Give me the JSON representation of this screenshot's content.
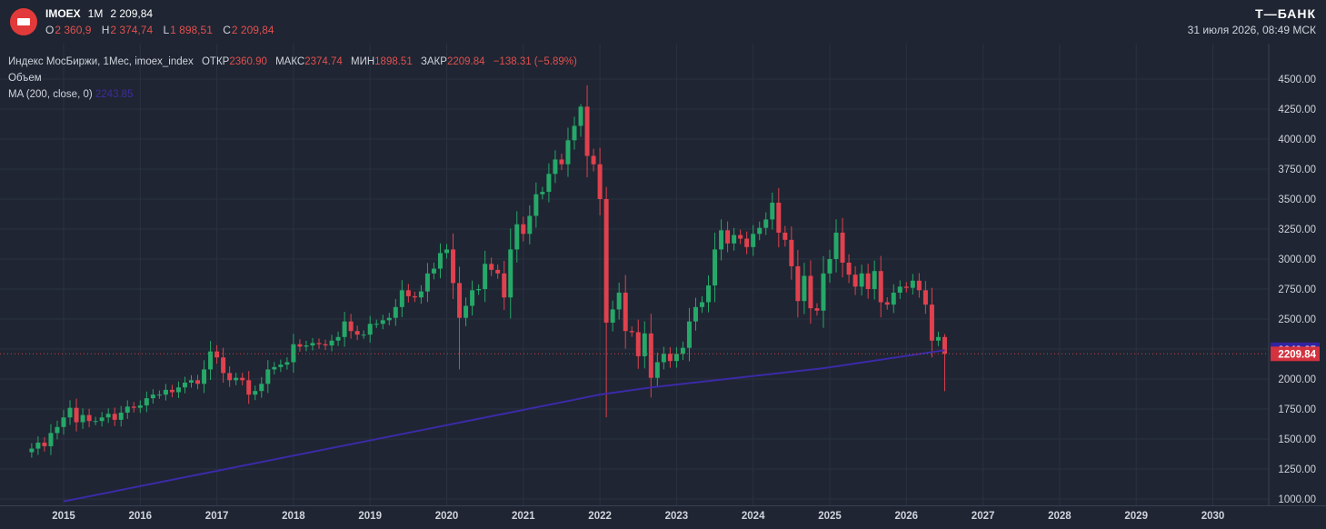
{
  "header": {
    "ticker": "IMOEX",
    "interval": "1M",
    "last_price": "2 209,84",
    "ohlc": [
      {
        "key": "O",
        "value": "2 360,9"
      },
      {
        "key": "H",
        "value": "2 374,74"
      },
      {
        "key": "L",
        "value": "1 898,51"
      },
      {
        "key": "C",
        "value": "2 209,84"
      }
    ],
    "brand": "Т—БАНК",
    "datetime": "31 июля 2026, 08:49 МСК"
  },
  "legend": {
    "instrument": "Индекс МосБиржи, 1Мес, imoex_index",
    "open_label": "ОТКР",
    "open_value": "2360.90",
    "high_label": "МАКС",
    "high_value": "2374.74",
    "low_label": "МИН",
    "low_value": "1898.51",
    "close_label": "ЗАКР",
    "close_value": "2209.84",
    "change": "−138.31 (−5.89%)",
    "volume_label": "Объем",
    "ma_label": "MA (200, close, 0)",
    "ma_value": "2243.85"
  },
  "colors": {
    "background": "#1f2532",
    "grid": "#2a3140",
    "up": "#26a869",
    "down": "#e0414e",
    "ma": "#3b2aa8",
    "price_tag": "#d3323f",
    "ma_tag": "#3223a0"
  },
  "chart_data": {
    "type": "candlestick",
    "interval": "1M",
    "y_ticks": [
      "4500.00",
      "4250.00",
      "4000.00",
      "3750.00",
      "3500.00",
      "3250.00",
      "3000.00",
      "2750.00",
      "2500.00",
      "2250.00",
      "2000.00",
      "1750.00",
      "1500.00",
      "1250.00",
      "1000.00"
    ],
    "x_ticks": [
      "2015",
      "2016",
      "2017",
      "2018",
      "2019",
      "2020",
      "2021",
      "2022",
      "2023",
      "2024",
      "2025",
      "2026",
      "2027",
      "2028",
      "2029",
      "2030"
    ],
    "ylim": [
      980,
      4620
    ],
    "grid": true,
    "last_price_label": "2209.84",
    "ma_label_value": "2243.85",
    "close_series": [
      {
        "date": "2014-08",
        "close": 1420
      },
      {
        "date": "2014-09",
        "close": 1470
      },
      {
        "date": "2014-10",
        "close": 1440
      },
      {
        "date": "2014-11",
        "close": 1550
      },
      {
        "date": "2014-12",
        "close": 1600
      },
      {
        "date": "2015-01",
        "close": 1680
      },
      {
        "date": "2015-02",
        "close": 1760
      },
      {
        "date": "2015-03",
        "close": 1640
      },
      {
        "date": "2015-04",
        "close": 1700
      },
      {
        "date": "2015-05",
        "close": 1650
      },
      {
        "date": "2015-06",
        "close": 1650
      },
      {
        "date": "2015-07",
        "close": 1680
      },
      {
        "date": "2015-08",
        "close": 1710
      },
      {
        "date": "2015-09",
        "close": 1660
      },
      {
        "date": "2015-10",
        "close": 1720
      },
      {
        "date": "2015-11",
        "close": 1770
      },
      {
        "date": "2015-12",
        "close": 1760
      },
      {
        "date": "2016-01",
        "close": 1780
      },
      {
        "date": "2016-02",
        "close": 1840
      },
      {
        "date": "2016-03",
        "close": 1870
      },
      {
        "date": "2016-04",
        "close": 1870
      },
      {
        "date": "2016-05",
        "close": 1910
      },
      {
        "date": "2016-06",
        "close": 1890
      },
      {
        "date": "2016-07",
        "close": 1930
      },
      {
        "date": "2016-08",
        "close": 1970
      },
      {
        "date": "2016-09",
        "close": 1990
      },
      {
        "date": "2016-10",
        "close": 1960
      },
      {
        "date": "2016-11",
        "close": 2080
      },
      {
        "date": "2016-12",
        "close": 2230
      },
      {
        "date": "2017-01",
        "close": 2180
      },
      {
        "date": "2017-02",
        "close": 2050
      },
      {
        "date": "2017-03",
        "close": 1990
      },
      {
        "date": "2017-04",
        "close": 2010
      },
      {
        "date": "2017-05",
        "close": 1990
      },
      {
        "date": "2017-06",
        "close": 1870
      },
      {
        "date": "2017-07",
        "close": 1900
      },
      {
        "date": "2017-08",
        "close": 1960
      },
      {
        "date": "2017-09",
        "close": 2080
      },
      {
        "date": "2017-10",
        "close": 2100
      },
      {
        "date": "2017-11",
        "close": 2120
      },
      {
        "date": "2017-12",
        "close": 2140
      },
      {
        "date": "2018-01",
        "close": 2290
      },
      {
        "date": "2018-02",
        "close": 2270
      },
      {
        "date": "2018-03",
        "close": 2280
      },
      {
        "date": "2018-04",
        "close": 2300
      },
      {
        "date": "2018-05",
        "close": 2290
      },
      {
        "date": "2018-06",
        "close": 2280
      },
      {
        "date": "2018-07",
        "close": 2320
      },
      {
        "date": "2018-08",
        "close": 2350
      },
      {
        "date": "2018-09",
        "close": 2480
      },
      {
        "date": "2018-10",
        "close": 2400
      },
      {
        "date": "2018-11",
        "close": 2370
      },
      {
        "date": "2018-12",
        "close": 2370
      },
      {
        "date": "2019-01",
        "close": 2460
      },
      {
        "date": "2019-02",
        "close": 2460
      },
      {
        "date": "2019-03",
        "close": 2490
      },
      {
        "date": "2019-04",
        "close": 2510
      },
      {
        "date": "2019-05",
        "close": 2600
      },
      {
        "date": "2019-06",
        "close": 2740
      },
      {
        "date": "2019-07",
        "close": 2690
      },
      {
        "date": "2019-08",
        "close": 2680
      },
      {
        "date": "2019-09",
        "close": 2730
      },
      {
        "date": "2019-10",
        "close": 2880
      },
      {
        "date": "2019-11",
        "close": 2920
      },
      {
        "date": "2019-12",
        "close": 3050
      },
      {
        "date": "2020-01",
        "close": 3080
      },
      {
        "date": "2020-02",
        "close": 2800
      },
      {
        "date": "2020-03",
        "close": 2510
      },
      {
        "date": "2020-04",
        "close": 2610
      },
      {
        "date": "2020-05",
        "close": 2740
      },
      {
        "date": "2020-06",
        "close": 2750
      },
      {
        "date": "2020-07",
        "close": 2960
      },
      {
        "date": "2020-08",
        "close": 2910
      },
      {
        "date": "2020-09",
        "close": 2880
      },
      {
        "date": "2020-10",
        "close": 2680
      },
      {
        "date": "2020-11",
        "close": 3080
      },
      {
        "date": "2020-12",
        "close": 3290
      },
      {
        "date": "2021-01",
        "close": 3210
      },
      {
        "date": "2021-02",
        "close": 3360
      },
      {
        "date": "2021-03",
        "close": 3540
      },
      {
        "date": "2021-04",
        "close": 3560
      },
      {
        "date": "2021-05",
        "close": 3710
      },
      {
        "date": "2021-06",
        "close": 3830
      },
      {
        "date": "2021-07",
        "close": 3790
      },
      {
        "date": "2021-08",
        "close": 3990
      },
      {
        "date": "2021-09",
        "close": 4110
      },
      {
        "date": "2021-10",
        "close": 4270
      },
      {
        "date": "2021-11",
        "close": 3860
      },
      {
        "date": "2021-12",
        "close": 3790
      },
      {
        "date": "2022-01",
        "close": 3500
      },
      {
        "date": "2022-02",
        "close": 2470
      },
      {
        "date": "2022-03",
        "close": 2580
      },
      {
        "date": "2022-04",
        "close": 2720
      },
      {
        "date": "2022-05",
        "close": 2400
      },
      {
        "date": "2022-06",
        "close": 2390
      },
      {
        "date": "2022-07",
        "close": 2190
      },
      {
        "date": "2022-08",
        "close": 2380
      },
      {
        "date": "2022-09",
        "close": 2010
      },
      {
        "date": "2022-10",
        "close": 2140
      },
      {
        "date": "2022-11",
        "close": 2210
      },
      {
        "date": "2022-12",
        "close": 2150
      },
      {
        "date": "2023-01",
        "close": 2210
      },
      {
        "date": "2023-02",
        "close": 2260
      },
      {
        "date": "2023-03",
        "close": 2480
      },
      {
        "date": "2023-04",
        "close": 2600
      },
      {
        "date": "2023-05",
        "close": 2640
      },
      {
        "date": "2023-06",
        "close": 2780
      },
      {
        "date": "2023-07",
        "close": 3080
      },
      {
        "date": "2023-08",
        "close": 3240
      },
      {
        "date": "2023-09",
        "close": 3130
      },
      {
        "date": "2023-10",
        "close": 3200
      },
      {
        "date": "2023-11",
        "close": 3170
      },
      {
        "date": "2023-12",
        "close": 3100
      },
      {
        "date": "2024-01",
        "close": 3210
      },
      {
        "date": "2024-02",
        "close": 3260
      },
      {
        "date": "2024-03",
        "close": 3330
      },
      {
        "date": "2024-04",
        "close": 3470
      },
      {
        "date": "2024-05",
        "close": 3220
      },
      {
        "date": "2024-06",
        "close": 3160
      },
      {
        "date": "2024-07",
        "close": 2940
      },
      {
        "date": "2024-08",
        "close": 2650
      },
      {
        "date": "2024-09",
        "close": 2860
      },
      {
        "date": "2024-10",
        "close": 2590
      },
      {
        "date": "2024-11",
        "close": 2570
      },
      {
        "date": "2024-12",
        "close": 2880
      },
      {
        "date": "2025-01",
        "close": 3000
      },
      {
        "date": "2025-02",
        "close": 3220
      },
      {
        "date": "2025-03",
        "close": 2970
      },
      {
        "date": "2025-04",
        "close": 2870
      },
      {
        "date": "2025-05",
        "close": 2770
      },
      {
        "date": "2025-06",
        "close": 2880
      },
      {
        "date": "2025-07",
        "close": 2750
      },
      {
        "date": "2025-08",
        "close": 2900
      },
      {
        "date": "2025-09",
        "close": 2640
      },
      {
        "date": "2025-10",
        "close": 2620
      },
      {
        "date": "2025-11",
        "close": 2720
      },
      {
        "date": "2025-12",
        "close": 2770
      },
      {
        "date": "2026-01",
        "close": 2760
      },
      {
        "date": "2026-02",
        "close": 2820
      },
      {
        "date": "2026-03",
        "close": 2740
      },
      {
        "date": "2026-04",
        "close": 2620
      },
      {
        "date": "2026-05",
        "close": 2320
      },
      {
        "date": "2026-06",
        "close": 2350
      },
      {
        "date": "2026-07",
        "close": 2210
      }
    ],
    "ma_series": [
      {
        "date": "2015-01",
        "value": 980
      },
      {
        "date": "2022-01",
        "value": 1870
      },
      {
        "date": "2022-09",
        "value": 1930
      },
      {
        "date": "2024-12",
        "value": 2090
      },
      {
        "date": "2026-07",
        "value": 2240
      }
    ]
  }
}
